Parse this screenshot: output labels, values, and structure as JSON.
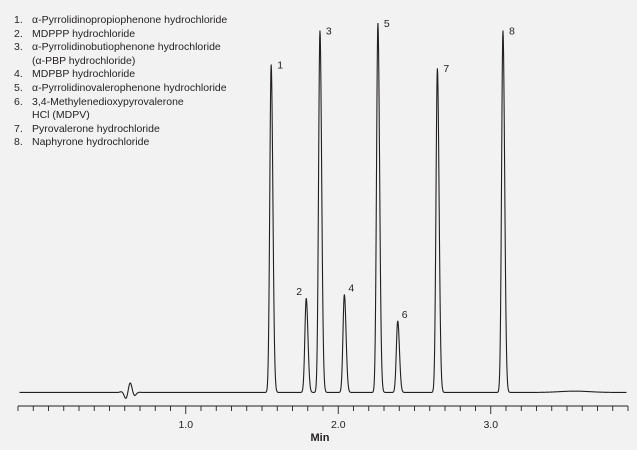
{
  "legend": [
    {
      "num": "1.",
      "label": "α-Pyrrolidinopropiophenone hydrochloride"
    },
    {
      "num": "2.",
      "label": "MDPPP hydrochloride"
    },
    {
      "num": "3.",
      "label": "α-Pyrrolidinobutiophenone hydrochloride\n(α-PBP hydrochloride)"
    },
    {
      "num": "4.",
      "label": "MDPBP hydrochloride"
    },
    {
      "num": "5.",
      "label": "α-Pyrrolidinovalerophenone hydrochloride"
    },
    {
      "num": "6.",
      "label": "3,4-Methylenedioxypyrovalerone\nHCl (MDPV)"
    },
    {
      "num": "7.",
      "label": "Pyrovalerone hydrochloride"
    },
    {
      "num": "8.",
      "label": "Naphyrone hydrochloride"
    }
  ],
  "chart_data": {
    "type": "line",
    "title": "",
    "xlabel": "Min",
    "ylabel": "",
    "xlim": [
      -0.1,
      3.9
    ],
    "ylim": [
      0,
      100
    ],
    "x_ticks": [
      1.0,
      2.0,
      3.0
    ],
    "x_tick_labels": [
      "1.0",
      "2.0",
      "3.0"
    ],
    "minor_tick_step": 0.1,
    "baseline": 2,
    "peaks": [
      {
        "label": "1",
        "time": 1.56,
        "height": 89
      },
      {
        "label": "2",
        "time": 1.79,
        "height": 27
      },
      {
        "label": "3",
        "time": 1.88,
        "height": 98
      },
      {
        "label": "4",
        "time": 2.04,
        "height": 28
      },
      {
        "label": "5",
        "time": 2.26,
        "height": 100
      },
      {
        "label": "6",
        "time": 2.39,
        "height": 21
      },
      {
        "label": "7",
        "time": 2.65,
        "height": 88
      },
      {
        "label": "8",
        "time": 3.08,
        "height": 98
      }
    ],
    "line_color": "#231f20"
  }
}
